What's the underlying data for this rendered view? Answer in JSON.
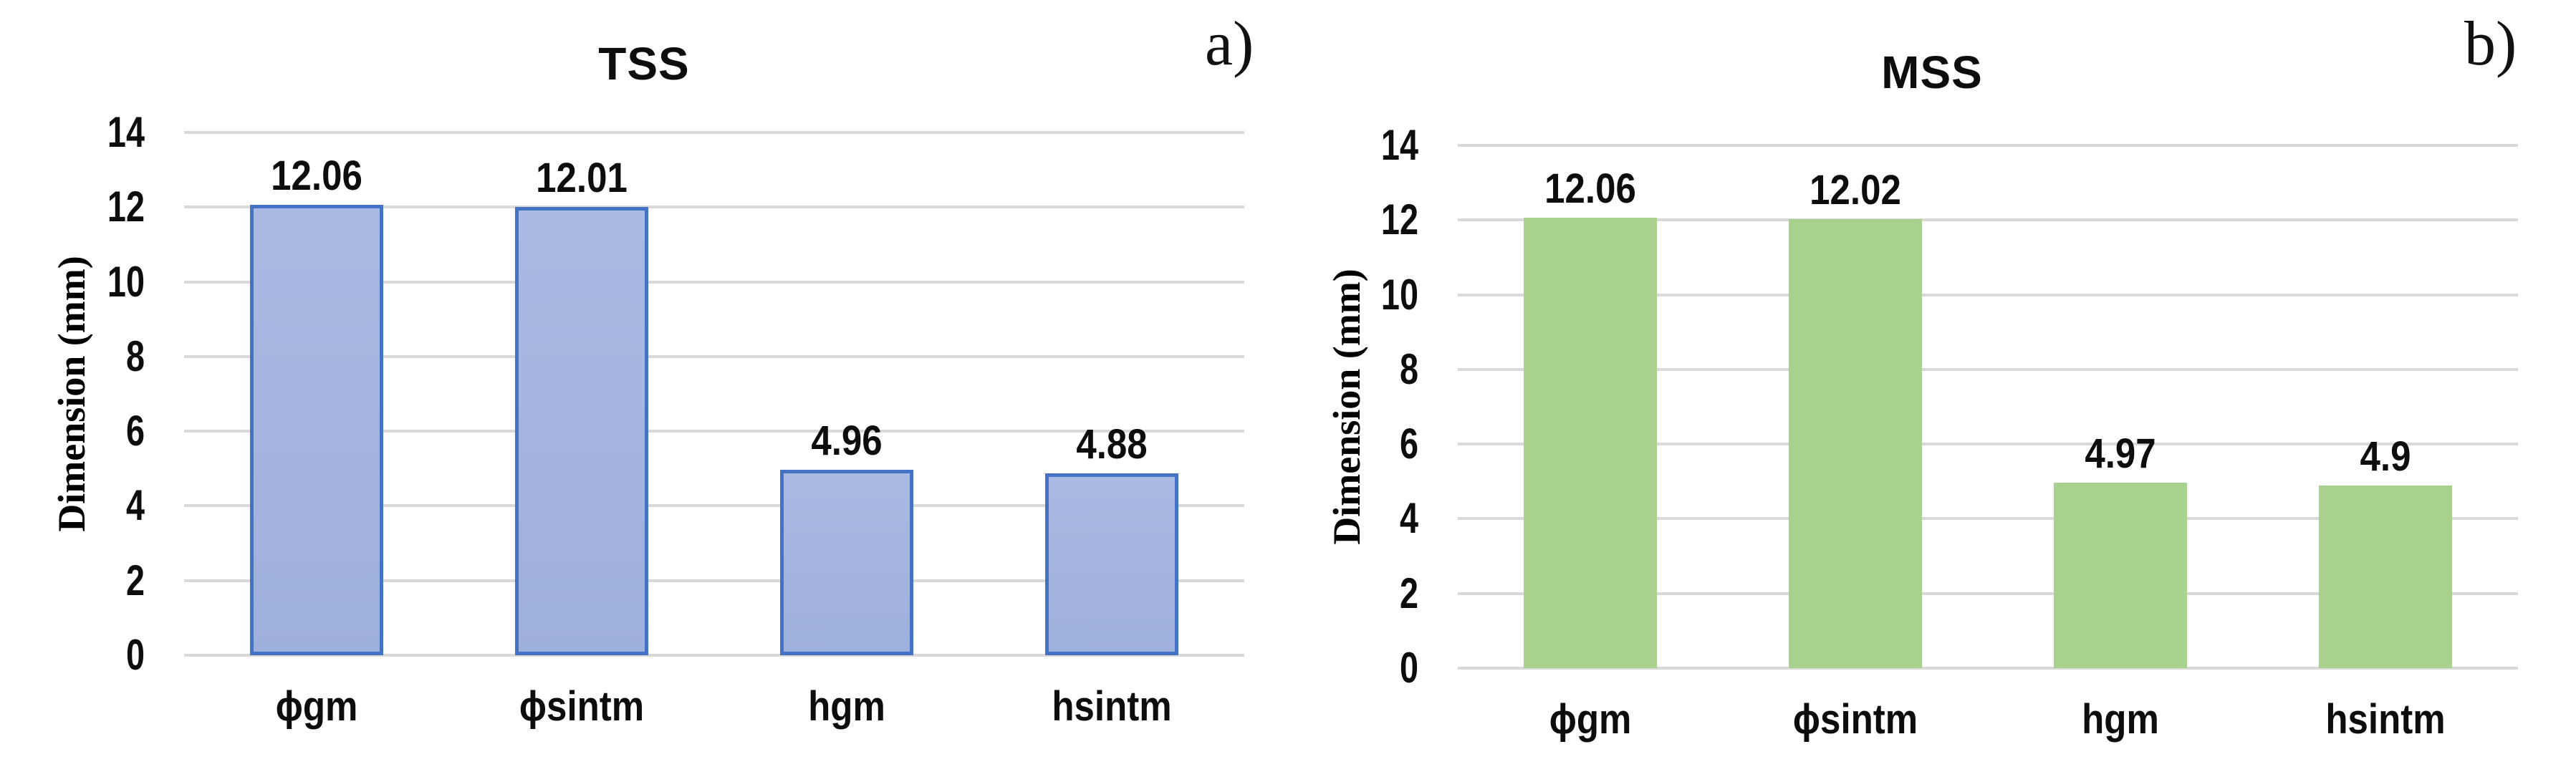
{
  "figure": {
    "background": "#ffffff",
    "gridline_color": "#d9d9d9",
    "text_color": "#0d0d0d"
  },
  "chart_data": [
    {
      "type": "bar",
      "panel_label": "a)",
      "title": "TSS",
      "categories": [
        "ϕgm",
        "ϕsintm",
        "hgm",
        "hsintm"
      ],
      "values": [
        12.06,
        12.01,
        4.96,
        4.88
      ],
      "data_labels": [
        "12.06",
        "12.01",
        "4.96",
        "4.88"
      ],
      "xlabel": "",
      "ylabel": "Dimension (mm)",
      "ylim": [
        0,
        14
      ],
      "yticks": [
        0,
        2,
        4,
        6,
        8,
        10,
        12,
        14
      ],
      "ytick_labels": [
        "0",
        "2",
        "4",
        "6",
        "8",
        "10",
        "12",
        "14"
      ],
      "grid": "horizontal",
      "legend": "none",
      "bar_fill": "#a5b5e0",
      "bar_fill_top": "#abbae3",
      "bar_fill_bottom": "#9db0db",
      "bar_border_color": "#4472c4",
      "bar_border_width": 5
    },
    {
      "type": "bar",
      "panel_label": "b)",
      "title": "MSS",
      "categories": [
        "ϕgm",
        "ϕsintm",
        "hgm",
        "hsintm"
      ],
      "values": [
        12.06,
        12.02,
        4.97,
        4.9
      ],
      "data_labels": [
        "12.06",
        "12.02",
        "4.97",
        "4.9"
      ],
      "xlabel": "",
      "ylabel": "Dimension (mm)",
      "ylim": [
        0,
        14
      ],
      "yticks": [
        0,
        2,
        4,
        6,
        8,
        10,
        12,
        14
      ],
      "ytick_labels": [
        "0",
        "2",
        "4",
        "6",
        "8",
        "10",
        "12",
        "14"
      ],
      "grid": "horizontal",
      "legend": "none",
      "bar_fill": "#a9d18e",
      "bar_fill_top": "#a9d18e",
      "bar_fill_bottom": "#a9d18e",
      "bar_border_color": "none",
      "bar_border_width": 0
    }
  ]
}
